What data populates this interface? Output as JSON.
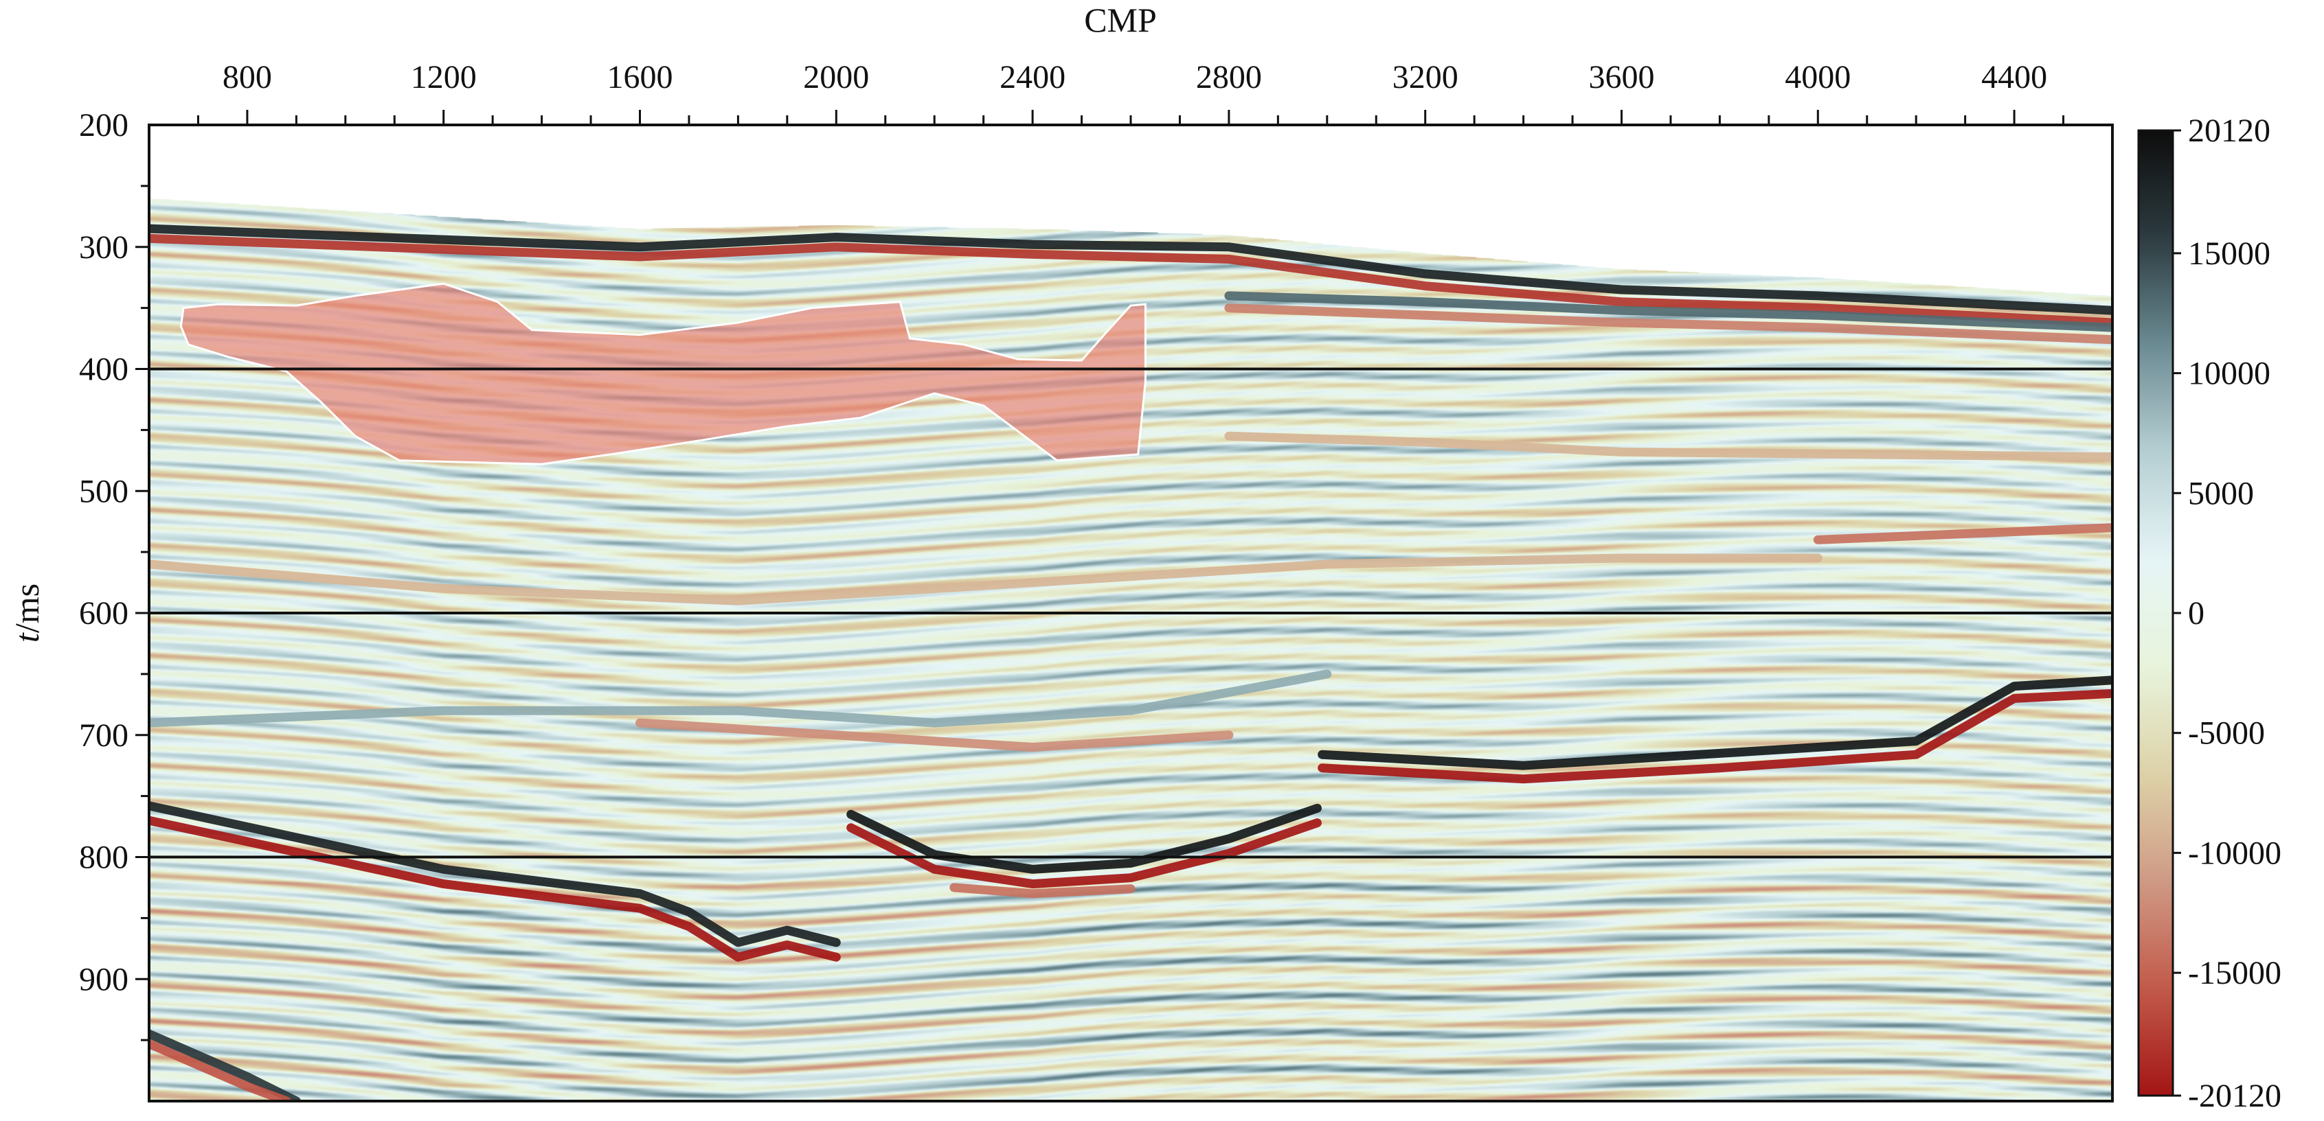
{
  "chart_data": {
    "type": "heatmap",
    "subtype": "seismic-section",
    "xlabel": "CMP",
    "ylabel_italic": "t",
    "ylabel_rest": "/ms",
    "x_axis_position": "top",
    "y_axis_inverted": true,
    "xlim": [
      600,
      4600
    ],
    "ylim": [
      200,
      1000
    ],
    "x_ticks": [
      800,
      1200,
      1600,
      2000,
      2400,
      2800,
      3200,
      3600,
      4000,
      4400
    ],
    "x_tick_labels": [
      "800",
      "1200",
      "1600",
      "2000",
      "2400",
      "2800",
      "3200",
      "3600",
      "4000",
      "4400"
    ],
    "x_minor_step": 100,
    "y_ticks": [
      200,
      300,
      400,
      500,
      600,
      700,
      800,
      900
    ],
    "y_tick_labels": [
      "200",
      "300",
      "400",
      "500",
      "600",
      "700",
      "800",
      "900"
    ],
    "horizontal_reference_lines": [
      400,
      600,
      800
    ],
    "colorbar": {
      "min": -20120,
      "max": 20120,
      "ticks": [
        20120,
        15000,
        10000,
        5000,
        0,
        -5000,
        -10000,
        -15000,
        -20120
      ],
      "tick_labels": [
        "20120",
        "15000",
        "10000",
        "5000",
        "0",
        "-5000",
        "-10000",
        "-15000",
        "-20120"
      ],
      "colors": [
        "#a31515",
        "#c25a4a",
        "#cf9a85",
        "#ddd2a8",
        "#e8f4dc",
        "#e6f5f6",
        "#b6cfd3",
        "#6b8b93",
        "#2c3b40",
        "#0d0d0d"
      ]
    },
    "water_bottom_time_ms": [
      {
        "cmp": 600,
        "t": 260
      },
      {
        "cmp": 1000,
        "t": 270
      },
      {
        "cmp": 1600,
        "t": 285
      },
      {
        "cmp": 2000,
        "t": 282
      },
      {
        "cmp": 2400,
        "t": 285
      },
      {
        "cmp": 2800,
        "t": 290
      },
      {
        "cmp": 3200,
        "t": 305
      },
      {
        "cmp": 3600,
        "t": 318
      },
      {
        "cmp": 4000,
        "t": 325
      },
      {
        "cmp": 4400,
        "t": 335
      },
      {
        "cmp": 4600,
        "t": 340
      }
    ],
    "highlighted_region": {
      "color": "#e8786a",
      "outline": [
        {
          "cmp": 670,
          "t": 350
        },
        {
          "cmp": 740,
          "t": 347
        },
        {
          "cmp": 900,
          "t": 348
        },
        {
          "cmp": 1020,
          "t": 340
        },
        {
          "cmp": 1200,
          "t": 330
        },
        {
          "cmp": 1310,
          "t": 345
        },
        {
          "cmp": 1380,
          "t": 368
        },
        {
          "cmp": 1600,
          "t": 372
        },
        {
          "cmp": 1800,
          "t": 362
        },
        {
          "cmp": 1950,
          "t": 350
        },
        {
          "cmp": 2130,
          "t": 345
        },
        {
          "cmp": 2150,
          "t": 375
        },
        {
          "cmp": 2260,
          "t": 380
        },
        {
          "cmp": 2370,
          "t": 392
        },
        {
          "cmp": 2500,
          "t": 393
        },
        {
          "cmp": 2550,
          "t": 370
        },
        {
          "cmp": 2600,
          "t": 348
        },
        {
          "cmp": 2630,
          "t": 347
        },
        {
          "cmp": 2630,
          "t": 410
        },
        {
          "cmp": 2615,
          "t": 470
        },
        {
          "cmp": 2450,
          "t": 475
        },
        {
          "cmp": 2300,
          "t": 430
        },
        {
          "cmp": 2200,
          "t": 420
        },
        {
          "cmp": 2050,
          "t": 440
        },
        {
          "cmp": 1900,
          "t": 447
        },
        {
          "cmp": 1700,
          "t": 460
        },
        {
          "cmp": 1540,
          "t": 470
        },
        {
          "cmp": 1400,
          "t": 478
        },
        {
          "cmp": 1110,
          "t": 475
        },
        {
          "cmp": 1020,
          "t": 455
        },
        {
          "cmp": 950,
          "t": 427
        },
        {
          "cmp": 880,
          "t": 402
        },
        {
          "cmp": 760,
          "t": 390
        },
        {
          "cmp": 680,
          "t": 380
        },
        {
          "cmp": 665,
          "t": 365
        }
      ]
    },
    "horizons": [
      {
        "amp": 18000,
        "pts": [
          [
            600,
            285
          ],
          [
            1600,
            300
          ],
          [
            2000,
            292
          ],
          [
            2400,
            298
          ],
          [
            2800,
            300
          ],
          [
            3200,
            322
          ],
          [
            3600,
            335
          ],
          [
            4000,
            340
          ],
          [
            4600,
            352
          ]
        ]
      },
      {
        "amp": -18000,
        "pts": [
          [
            600,
            293
          ],
          [
            1600,
            308
          ],
          [
            2000,
            300
          ],
          [
            2400,
            306
          ],
          [
            2800,
            310
          ],
          [
            3200,
            332
          ],
          [
            3600,
            345
          ],
          [
            4000,
            350
          ],
          [
            4600,
            362
          ]
        ]
      },
      {
        "amp": 13000,
        "pts": [
          [
            2800,
            340
          ],
          [
            3200,
            345
          ],
          [
            3600,
            352
          ],
          [
            4000,
            356
          ],
          [
            4600,
            366
          ]
        ]
      },
      {
        "amp": -13000,
        "pts": [
          [
            2800,
            350
          ],
          [
            3200,
            356
          ],
          [
            3600,
            362
          ],
          [
            4000,
            366
          ],
          [
            4600,
            376
          ]
        ]
      },
      {
        "amp": -9000,
        "pts": [
          [
            2800,
            455
          ],
          [
            3200,
            460
          ],
          [
            3600,
            468
          ],
          [
            4600,
            472
          ]
        ]
      },
      {
        "amp": -14000,
        "pts": [
          [
            4000,
            540
          ],
          [
            4300,
            535
          ],
          [
            4600,
            530
          ]
        ]
      },
      {
        "amp": -9000,
        "pts": [
          [
            600,
            560
          ],
          [
            1200,
            580
          ],
          [
            1800,
            590
          ],
          [
            2400,
            575
          ],
          [
            3000,
            560
          ],
          [
            3600,
            555
          ],
          [
            4000,
            555
          ]
        ]
      },
      {
        "amp": 9000,
        "pts": [
          [
            600,
            690
          ],
          [
            1200,
            680
          ],
          [
            1800,
            680
          ],
          [
            2200,
            690
          ],
          [
            2600,
            680
          ],
          [
            3000,
            650
          ]
        ]
      },
      {
        "amp": -12000,
        "pts": [
          [
            1600,
            690
          ],
          [
            2000,
            700
          ],
          [
            2400,
            710
          ],
          [
            2800,
            700
          ]
        ]
      },
      {
        "amp": 19000,
        "pts": [
          [
            2990,
            716
          ],
          [
            3400,
            725
          ],
          [
            3800,
            715
          ],
          [
            4200,
            705
          ],
          [
            4400,
            660
          ],
          [
            4600,
            655
          ]
        ]
      },
      {
        "amp": -20000,
        "pts": [
          [
            2990,
            727
          ],
          [
            3400,
            736
          ],
          [
            3800,
            727
          ],
          [
            4200,
            716
          ],
          [
            4400,
            670
          ],
          [
            4600,
            666
          ]
        ]
      },
      {
        "amp": 18000,
        "pts": [
          [
            600,
            758
          ],
          [
            1200,
            810
          ],
          [
            1600,
            830
          ],
          [
            1700,
            845
          ],
          [
            1800,
            870
          ],
          [
            1900,
            860
          ],
          [
            2000,
            870
          ]
        ]
      },
      {
        "amp": -20000,
        "pts": [
          [
            600,
            770
          ],
          [
            1200,
            822
          ],
          [
            1600,
            842
          ],
          [
            1700,
            857
          ],
          [
            1800,
            882
          ],
          [
            1900,
            872
          ],
          [
            2000,
            882
          ]
        ]
      },
      {
        "amp": 19000,
        "pts": [
          [
            2030,
            765
          ],
          [
            2200,
            798
          ],
          [
            2400,
            810
          ],
          [
            2600,
            805
          ],
          [
            2800,
            785
          ],
          [
            2980,
            760
          ]
        ]
      },
      {
        "amp": -20000,
        "pts": [
          [
            2030,
            776
          ],
          [
            2200,
            810
          ],
          [
            2400,
            822
          ],
          [
            2600,
            817
          ],
          [
            2800,
            797
          ],
          [
            2980,
            772
          ]
        ]
      },
      {
        "amp": -14000,
        "pts": [
          [
            2240,
            825
          ],
          [
            2400,
            830
          ],
          [
            2600,
            826
          ]
        ]
      },
      {
        "amp": 16000,
        "pts": [
          [
            600,
            945
          ],
          [
            800,
            980
          ],
          [
            900,
            1000
          ]
        ]
      },
      {
        "amp": -16000,
        "pts": [
          [
            600,
            953
          ],
          [
            800,
            988
          ],
          [
            880,
            1000
          ]
        ]
      }
    ]
  }
}
